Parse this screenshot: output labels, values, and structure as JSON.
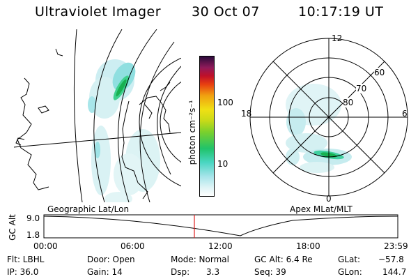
{
  "header": {
    "title": "Ultraviolet Imager",
    "date": "30 Oct 07",
    "time": "10:17:19 UT"
  },
  "colorbar": {
    "unit_label": "photon cm⁻²s⁻¹",
    "tick_labels": [
      "100",
      "10"
    ]
  },
  "polar_plot": {
    "mlt_labels": {
      "top": "12",
      "right": "6",
      "bottom": "0",
      "left": "18"
    },
    "lat_labels": [
      "60",
      "70",
      "80"
    ],
    "label": "Apex MLat/MLT"
  },
  "geo_plot": {
    "label": "Geographic Lat/Lon"
  },
  "altitude_panel": {
    "axis_label": "GC Alt",
    "y_ticks": [
      "9.0",
      "1.8"
    ],
    "time_ticks": [
      "00:00",
      "06:00",
      "12:00",
      "18:00",
      "23:59"
    ]
  },
  "info": {
    "filter": "Flt: LBHL",
    "ip": "IP: 36.0",
    "door": "Door: Open",
    "gain": "Gain: 14",
    "mode": "Mode: Normal",
    "dsp_label": "Dsp:",
    "dsp_value": "3.3",
    "gc_alt": "GC Alt: 6.4 Re",
    "seq": "Seq: 39",
    "glat_label": "GLat:",
    "glat_value": "−57.8",
    "glon_label": "GLon:",
    "glon_value": "144.7"
  },
  "colors": {
    "cursor_line": "#e02020",
    "aurora_faint": "#c8ecf0",
    "aurora_mid": "#7fdcd8",
    "aurora_bright": "#20c060"
  }
}
